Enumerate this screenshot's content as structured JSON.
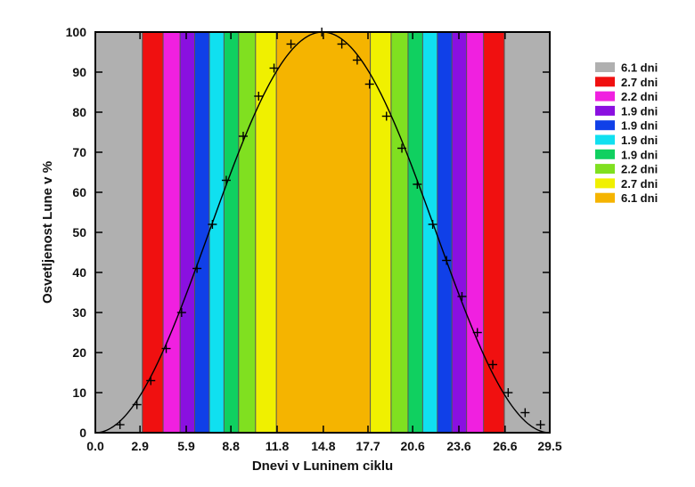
{
  "chart_data": {
    "type": "line",
    "title": "",
    "xlabel": "Dnevi v Luninem ciklu",
    "ylabel": "Osvetljenost Lune v %",
    "xlim": [
      0,
      29.5
    ],
    "ylim": [
      0,
      100
    ],
    "x_ticks": [
      0.0,
      2.9,
      5.9,
      8.8,
      11.8,
      14.8,
      17.7,
      20.6,
      23.6,
      26.6,
      29.5
    ],
    "x_tick_labels": [
      "0.0",
      "2.9",
      "5.9",
      "8.8",
      "11.8",
      "14.8",
      "17.7",
      "20.6",
      "23.6",
      "26.6",
      "29.5"
    ],
    "y_ticks": [
      0,
      10,
      20,
      30,
      40,
      50,
      60,
      70,
      80,
      90,
      100
    ],
    "y_tick_labels": [
      "0",
      "10",
      "20",
      "30",
      "40",
      "50",
      "60",
      "70",
      "80",
      "90",
      "100"
    ],
    "grid": false,
    "legend_position": "right",
    "bands": [
      {
        "label": "6.1 dni",
        "color": "#b0b0b0",
        "from": 0.0,
        "to": 3.05
      },
      {
        "label": "2.7 dni",
        "color": "#f01010",
        "from": 3.05,
        "to": 4.4
      },
      {
        "label": "2.2 dni",
        "color": "#f020e0",
        "from": 4.4,
        "to": 5.5
      },
      {
        "label": "1.9 dni",
        "color": "#8a10e0",
        "from": 5.5,
        "to": 6.45
      },
      {
        "label": "1.9 dni",
        "color": "#1040e8",
        "from": 6.45,
        "to": 7.4
      },
      {
        "label": "1.9 dni",
        "color": "#10e0f0",
        "from": 7.4,
        "to": 8.35
      },
      {
        "label": "1.9 dni",
        "color": "#10d060",
        "from": 8.35,
        "to": 9.3
      },
      {
        "label": "2.2 dni",
        "color": "#80e020",
        "from": 9.3,
        "to": 10.4
      },
      {
        "label": "2.7 dni",
        "color": "#f0f000",
        "from": 10.4,
        "to": 11.75
      },
      {
        "label": "6.1 dni",
        "color": "#f5b400",
        "from": 11.75,
        "to": 17.85
      },
      {
        "label": "2.7 dni",
        "color": "#f0f000",
        "from": 17.85,
        "to": 19.2
      },
      {
        "label": "2.2 dni",
        "color": "#80e020",
        "from": 19.2,
        "to": 20.3
      },
      {
        "label": "1.9 dni",
        "color": "#10d060",
        "from": 20.3,
        "to": 21.25
      },
      {
        "label": "1.9 dni",
        "color": "#10e0f0",
        "from": 21.25,
        "to": 22.2
      },
      {
        "label": "1.9 dni",
        "color": "#1040e8",
        "from": 22.2,
        "to": 23.15
      },
      {
        "label": "1.9 dni",
        "color": "#8a10e0",
        "from": 23.15,
        "to": 24.1
      },
      {
        "label": "2.2 dni",
        "color": "#f020e0",
        "from": 24.1,
        "to": 25.2
      },
      {
        "label": "2.7 dni",
        "color": "#f01010",
        "from": 25.2,
        "to": 26.55
      },
      {
        "label": "6.1 dni",
        "color": "#b0b0b0",
        "from": 26.55,
        "to": 29.5
      }
    ],
    "legend": [
      {
        "label": "6.1 dni",
        "color": "#b0b0b0"
      },
      {
        "label": "2.7 dni",
        "color": "#f01010"
      },
      {
        "label": "2.2 dni",
        "color": "#f020e0"
      },
      {
        "label": "1.9 dni",
        "color": "#8a10e0"
      },
      {
        "label": "1.9 dni",
        "color": "#1040e8"
      },
      {
        "label": "1.9 dni",
        "color": "#10e0f0"
      },
      {
        "label": "1.9 dni",
        "color": "#10d060"
      },
      {
        "label": "2.2 dni",
        "color": "#80e020"
      },
      {
        "label": "2.7 dni",
        "color": "#f0f000"
      },
      {
        "label": "6.1 dni",
        "color": "#f5b400"
      }
    ],
    "curve_color": "#000000",
    "measurements": {
      "marker": "plus",
      "x": [
        1.6,
        2.7,
        3.6,
        4.6,
        5.6,
        6.6,
        7.6,
        8.5,
        9.6,
        10.6,
        11.6,
        12.7,
        14.7,
        16.0,
        17.0,
        17.8,
        18.9,
        19.9,
        20.9,
        21.9,
        22.8,
        23.8,
        24.8,
        25.8,
        26.8,
        27.9,
        28.9
      ],
      "y": [
        2,
        7,
        13,
        21,
        30,
        41,
        52,
        63,
        74,
        84,
        91,
        97,
        100,
        97,
        93,
        87,
        79,
        71,
        62,
        52,
        43,
        34,
        25,
        17,
        10,
        5,
        2
      ]
    }
  }
}
